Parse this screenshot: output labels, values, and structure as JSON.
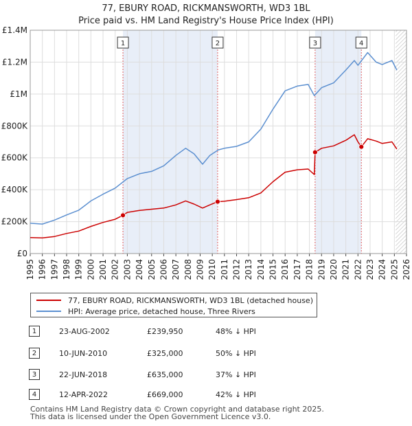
{
  "chart_data": {
    "type": "line",
    "title": "77, EBURY ROAD, RICKMANSWORTH, WD3 1BL",
    "subtitle": "Price paid vs. HM Land Registry's House Price Index (HPI)",
    "xlabel": "",
    "ylabel": "",
    "xlim": [
      1995,
      2026
    ],
    "ylim": [
      0,
      1400000
    ],
    "x_ticks": [
      1995,
      1996,
      1997,
      1998,
      1999,
      2000,
      2001,
      2002,
      2003,
      2004,
      2005,
      2006,
      2007,
      2008,
      2009,
      2010,
      2011,
      2012,
      2013,
      2014,
      2015,
      2016,
      2017,
      2018,
      2019,
      2020,
      2021,
      2022,
      2023,
      2024,
      2025,
      2026
    ],
    "y_ticks": [
      {
        "value": 0,
        "label": "£0"
      },
      {
        "value": 200000,
        "label": "£200K"
      },
      {
        "value": 400000,
        "label": "£400K"
      },
      {
        "value": 600000,
        "label": "£600K"
      },
      {
        "value": 800000,
        "label": "£800K"
      },
      {
        "value": 1000000,
        "label": "£1M"
      },
      {
        "value": 1200000,
        "label": "£1.2M"
      },
      {
        "value": 1400000,
        "label": "£1.4M"
      }
    ],
    "grid": true,
    "shaded_periods": [
      [
        2002.64,
        2010.44
      ],
      [
        2018.47,
        2022.28
      ]
    ],
    "future_hatch_start": 2025.1,
    "series": [
      {
        "name": "77, EBURY ROAD, RICKMANSWORTH, WD3 1BL (detached house)",
        "color": "#cc0000",
        "points": [
          [
            1995,
            100000
          ],
          [
            1996,
            98000
          ],
          [
            1997,
            107000
          ],
          [
            1998,
            126000
          ],
          [
            1999,
            141000
          ],
          [
            2000,
            170000
          ],
          [
            2001,
            195000
          ],
          [
            2002,
            215000
          ],
          [
            2002.64,
            239950
          ],
          [
            2003,
            258000
          ],
          [
            2004,
            270000
          ],
          [
            2005,
            278000
          ],
          [
            2006,
            285000
          ],
          [
            2007,
            305000
          ],
          [
            2007.8,
            330000
          ],
          [
            2008.5,
            310000
          ],
          [
            2009.2,
            285000
          ],
          [
            2009.8,
            305000
          ],
          [
            2010.44,
            325000
          ],
          [
            2011,
            328000
          ],
          [
            2012,
            338000
          ],
          [
            2013,
            350000
          ],
          [
            2014,
            380000
          ],
          [
            2015,
            450000
          ],
          [
            2016,
            510000
          ],
          [
            2017,
            525000
          ],
          [
            2017.9,
            530000
          ],
          [
            2018.4,
            495000
          ],
          [
            2018.47,
            635000
          ],
          [
            2019,
            660000
          ],
          [
            2020,
            675000
          ],
          [
            2021,
            710000
          ],
          [
            2021.7,
            745000
          ],
          [
            2022,
            700000
          ],
          [
            2022.28,
            669000
          ],
          [
            2022.8,
            720000
          ],
          [
            2023.5,
            705000
          ],
          [
            2024,
            690000
          ],
          [
            2024.8,
            700000
          ],
          [
            2025.2,
            655000
          ]
        ]
      },
      {
        "name": "HPI: Average price, detached house, Three Rivers",
        "color": "#5b8fd0",
        "points": [
          [
            1995,
            190000
          ],
          [
            1996,
            185000
          ],
          [
            1997,
            210000
          ],
          [
            1998,
            242000
          ],
          [
            1999,
            272000
          ],
          [
            2000,
            330000
          ],
          [
            2001,
            372000
          ],
          [
            2002,
            410000
          ],
          [
            2003,
            470000
          ],
          [
            2004,
            500000
          ],
          [
            2005,
            515000
          ],
          [
            2006,
            550000
          ],
          [
            2007,
            615000
          ],
          [
            2007.8,
            660000
          ],
          [
            2008.5,
            625000
          ],
          [
            2009.2,
            560000
          ],
          [
            2009.8,
            615000
          ],
          [
            2010.5,
            650000
          ],
          [
            2011,
            660000
          ],
          [
            2012,
            672000
          ],
          [
            2013,
            700000
          ],
          [
            2014,
            780000
          ],
          [
            2015,
            905000
          ],
          [
            2016,
            1020000
          ],
          [
            2017,
            1050000
          ],
          [
            2017.9,
            1060000
          ],
          [
            2018.4,
            990000
          ],
          [
            2019,
            1040000
          ],
          [
            2020,
            1070000
          ],
          [
            2021,
            1150000
          ],
          [
            2021.7,
            1210000
          ],
          [
            2022,
            1180000
          ],
          [
            2022.8,
            1260000
          ],
          [
            2023.5,
            1200000
          ],
          [
            2024,
            1185000
          ],
          [
            2024.8,
            1210000
          ],
          [
            2025.2,
            1150000
          ]
        ]
      }
    ],
    "markers": [
      {
        "label": "1",
        "x": 2002.64,
        "y": 239950
      },
      {
        "label": "2",
        "x": 2010.44,
        "y": 325000
      },
      {
        "label": "3",
        "x": 2018.47,
        "y": 635000
      },
      {
        "label": "4",
        "x": 2022.28,
        "y": 669000
      }
    ]
  },
  "legend": {
    "property": "77, EBURY ROAD, RICKMANSWORTH, WD3 1BL (detached house)",
    "hpi": "HPI: Average price, detached house, Three Rivers"
  },
  "colors": {
    "property": "#cc0000",
    "hpi": "#5b8fd0",
    "shade": "#e8eef8"
  },
  "sales": [
    {
      "num": "1",
      "date": "23-AUG-2002",
      "price": "£239,950",
      "hpi": "48% ↓ HPI"
    },
    {
      "num": "2",
      "date": "10-JUN-2010",
      "price": "£325,000",
      "hpi": "50% ↓ HPI"
    },
    {
      "num": "3",
      "date": "22-JUN-2018",
      "price": "£635,000",
      "hpi": "37% ↓ HPI"
    },
    {
      "num": "4",
      "date": "12-APR-2022",
      "price": "£669,000",
      "hpi": "42% ↓ HPI"
    }
  ],
  "footer": {
    "line1": "Contains HM Land Registry data © Crown copyright and database right 2025.",
    "line2": "This data is licensed under the Open Government Licence v3.0."
  }
}
